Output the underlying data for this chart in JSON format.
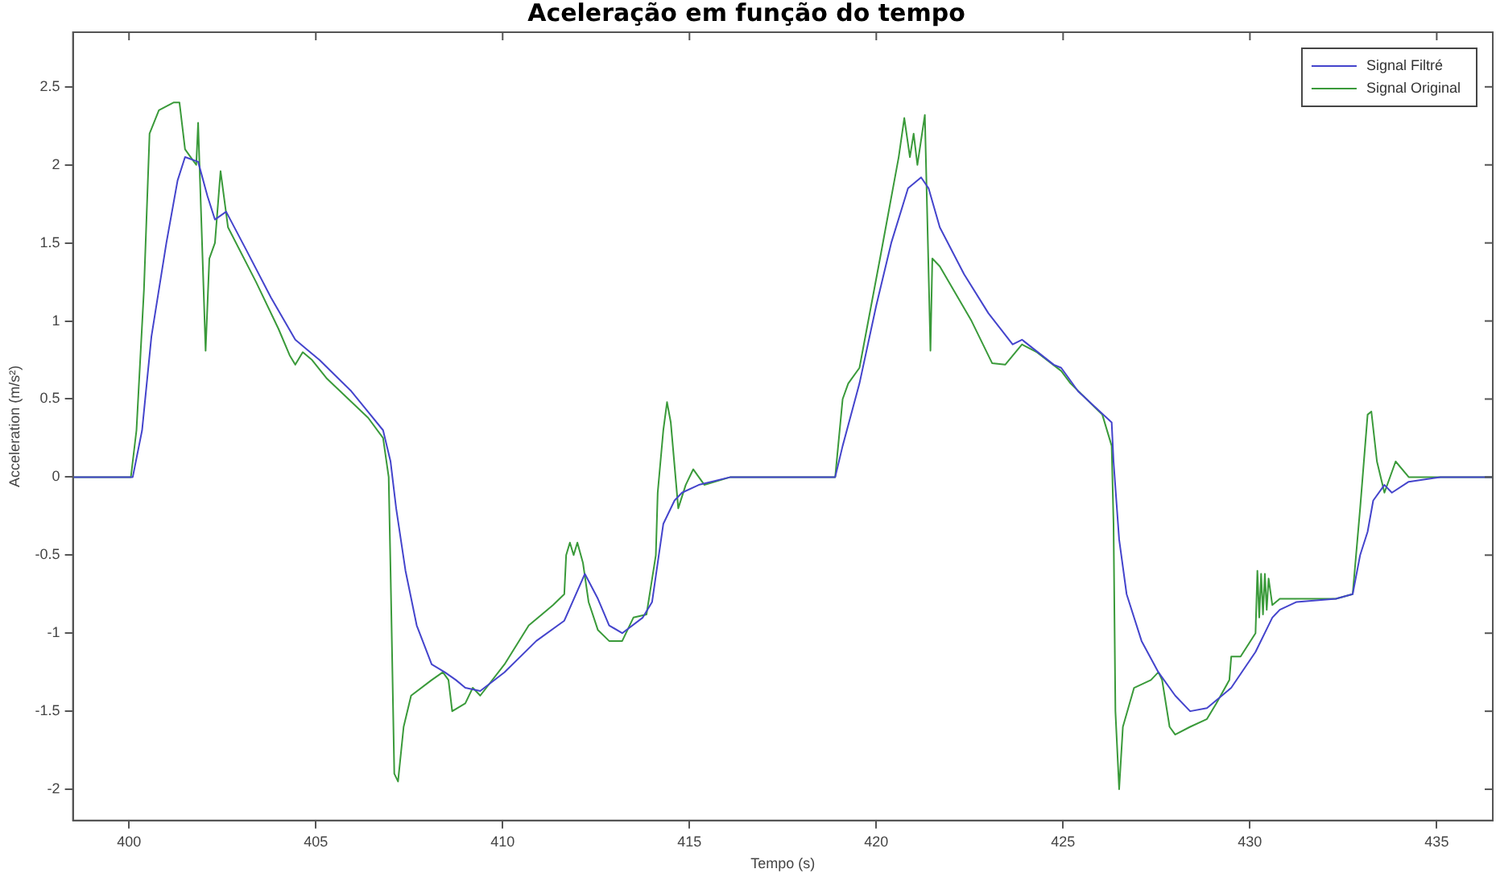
{
  "chart_data": {
    "type": "line",
    "title": "Aceleração em função do tempo",
    "xlabel": "Tempo (s)",
    "ylabel": "Acceleration (m/s²)",
    "xlim": [
      398.5,
      436.5
    ],
    "ylim": [
      -2.2,
      2.85
    ],
    "xticks": [
      400,
      405,
      410,
      415,
      420,
      425,
      430,
      435
    ],
    "yticks": [
      -2,
      -1.5,
      -1,
      -0.5,
      0,
      0.5,
      1,
      1.5,
      2,
      2.5
    ],
    "grid": false,
    "legend": "top right",
    "marker": "none",
    "line_style": "solid",
    "series": [
      {
        "name": "Signal Filtré",
        "color": "#4444cc",
        "x": [
          398.5,
          400.1,
          400.35,
          400.6,
          401,
          401.3,
          401.5,
          401.85,
          402.1,
          402.3,
          402.6,
          403.15,
          403.8,
          404.45,
          404.75,
          405.1,
          405.95,
          406.8,
          407,
          407.15,
          407.4,
          407.7,
          408.1,
          408.45,
          408.75,
          409,
          409.4,
          410.05,
          410.9,
          411.65,
          412.2,
          412.55,
          412.85,
          413.2,
          413.75,
          414,
          414.3,
          414.6,
          414.8,
          415.25,
          416.1,
          418.9,
          419.1,
          419.55,
          420,
          420.4,
          420.85,
          421.2,
          421.4,
          421.7,
          422.35,
          423,
          423.65,
          423.9,
          424.75,
          424.95,
          425.4,
          426.3,
          426.35,
          426.5,
          426.7,
          427.1,
          427.55,
          428,
          428.4,
          428.85,
          429.5,
          430.15,
          430.6,
          430.8,
          431.25,
          432.3,
          432.75,
          432.95,
          433.15,
          433.3,
          433.6,
          433.8,
          434.25,
          435.1,
          436.5
        ],
        "values": [
          0,
          0,
          0.3,
          0.9,
          1.5,
          1.9,
          2.05,
          2.02,
          1.8,
          1.65,
          1.7,
          1.45,
          1.15,
          0.88,
          0.82,
          0.75,
          0.55,
          0.3,
          0.1,
          -0.2,
          -0.6,
          -0.95,
          -1.2,
          -1.25,
          -1.3,
          -1.35,
          -1.37,
          -1.25,
          -1.05,
          -0.92,
          -0.62,
          -0.78,
          -0.95,
          -1,
          -0.9,
          -0.8,
          -0.3,
          -0.15,
          -0.1,
          -0.05,
          0,
          0,
          0.2,
          0.6,
          1.1,
          1.5,
          1.85,
          1.92,
          1.85,
          1.6,
          1.3,
          1.05,
          0.85,
          0.88,
          0.72,
          0.7,
          0.55,
          0.35,
          0.1,
          -0.4,
          -0.75,
          -1.05,
          -1.25,
          -1.4,
          -1.5,
          -1.48,
          -1.35,
          -1.12,
          -0.9,
          -0.85,
          -0.8,
          -0.78,
          -0.75,
          -0.5,
          -0.35,
          -0.15,
          -0.05,
          -0.1,
          -0.03,
          0,
          0
        ]
      },
      {
        "name": "Signal Original",
        "color": "#3a9a3a",
        "x": [
          398.5,
          400.05,
          400.2,
          400.4,
          400.55,
          400.8,
          401.2,
          401.35,
          401.45,
          401.5,
          401.65,
          401.8,
          401.85,
          402.05,
          402.15,
          402.3,
          402.45,
          402.65,
          403.4,
          404,
          404.3,
          404.45,
          404.65,
          404.9,
          405.3,
          406.4,
          406.8,
          406.95,
          407,
          407.1,
          407.2,
          407.35,
          407.55,
          408.1,
          408.4,
          408.55,
          408.65,
          409,
          409.2,
          409.4,
          410.05,
          410.7,
          411.35,
          411.65,
          411.7,
          411.8,
          411.9,
          412,
          412.15,
          412.3,
          412.55,
          412.85,
          413.2,
          413.5,
          413.85,
          414.1,
          414.15,
          414.3,
          414.4,
          414.5,
          414.7,
          414.9,
          415.1,
          415.4,
          416.1,
          418.9,
          419.1,
          419.25,
          419.55,
          420.1,
          420.6,
          420.75,
          420.9,
          421,
          421.1,
          421.3,
          421.45,
          421.5,
          421.7,
          422.55,
          423.1,
          423.45,
          423.9,
          424.3,
          424.95,
          425.2,
          426.05,
          426.3,
          426.35,
          426.4,
          426.5,
          426.6,
          426.9,
          427.35,
          427.55,
          427.65,
          427.85,
          428,
          428.4,
          428.85,
          429.1,
          429.45,
          429.5,
          429.75,
          430.15,
          430.2,
          430.25,
          430.3,
          430.35,
          430.4,
          430.45,
          430.5,
          430.6,
          430.8,
          432.3,
          432.75,
          432.95,
          433.15,
          433.25,
          433.4,
          433.6,
          433.9,
          434.25,
          436.5
        ],
        "values": [
          0,
          0,
          0.3,
          1.2,
          2.2,
          2.35,
          2.4,
          2.4,
          2.2,
          2.1,
          2.05,
          2,
          2.27,
          0.81,
          1.4,
          1.5,
          1.96,
          1.6,
          1.25,
          0.95,
          0.78,
          0.72,
          0.8,
          0.75,
          0.63,
          0.38,
          0.25,
          0,
          -0.6,
          -1.9,
          -1.95,
          -1.6,
          -1.4,
          -1.3,
          -1.25,
          -1.3,
          -1.5,
          -1.45,
          -1.35,
          -1.4,
          -1.2,
          -0.95,
          -0.82,
          -0.75,
          -0.5,
          -0.42,
          -0.5,
          -0.42,
          -0.55,
          -0.8,
          -0.98,
          -1.05,
          -1.05,
          -0.9,
          -0.88,
          -0.5,
          -0.1,
          0.3,
          0.48,
          0.35,
          -0.2,
          -0.05,
          0.05,
          -0.05,
          0,
          0,
          0.5,
          0.6,
          0.7,
          1.4,
          2.05,
          2.3,
          2.05,
          2.2,
          2,
          2.32,
          0.81,
          1.4,
          1.35,
          1,
          0.73,
          0.72,
          0.85,
          0.8,
          0.68,
          0.6,
          0.4,
          0.2,
          -0.3,
          -1.5,
          -2,
          -1.6,
          -1.35,
          -1.3,
          -1.25,
          -1.3,
          -1.6,
          -1.65,
          -1.6,
          -1.55,
          -1.45,
          -1.3,
          -1.15,
          -1.15,
          -1,
          -0.6,
          -0.9,
          -0.62,
          -0.88,
          -0.62,
          -0.85,
          -0.65,
          -0.82,
          -0.78,
          -0.78,
          -0.75,
          -0.2,
          0.4,
          0.42,
          0.1,
          -0.1,
          0.1,
          0,
          0
        ]
      }
    ]
  }
}
